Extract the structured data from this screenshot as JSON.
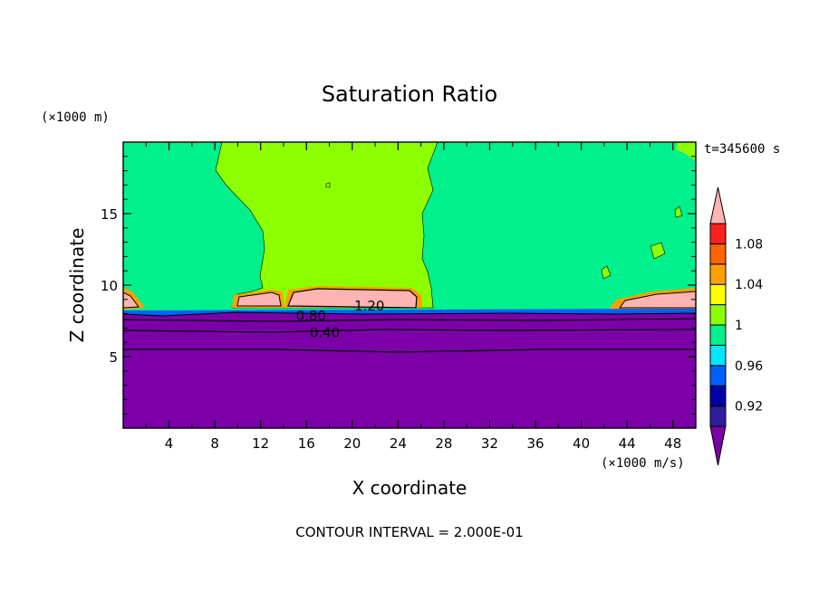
{
  "chart_data": {
    "type": "heatmap",
    "title": "Saturation Ratio",
    "xlabel": "X coordinate",
    "ylabel": "Z coordinate",
    "x_unit": "(×1000 m/s)",
    "y_unit": "(×1000 m)",
    "time_label": "t=345600 s",
    "footer": "CONTOUR INTERVAL = 2.000E-01",
    "xlim": [
      0,
      50
    ],
    "ylim": [
      0,
      20
    ],
    "x_ticks": [
      4,
      8,
      12,
      16,
      20,
      24,
      28,
      32,
      36,
      40,
      44,
      48
    ],
    "y_ticks": [
      5,
      10,
      15
    ],
    "colorbar": {
      "levels": [
        0.9,
        0.92,
        0.94,
        0.96,
        0.98,
        1.0,
        1.02,
        1.04,
        1.06,
        1.08,
        1.1
      ],
      "tick_labels": [
        "0.92",
        "0.96",
        "1",
        "1.04",
        "1.08"
      ],
      "tick_values": [
        0.92,
        0.96,
        1.0,
        1.04,
        1.08
      ],
      "colors": [
        "#2f1d9e",
        "#0000a8",
        "#0060ff",
        "#00e6ff",
        "#00f08c",
        "#8cff00",
        "#ffff00",
        "#ffa000",
        "#ff6400",
        "#ff2020"
      ],
      "under_color": "#7b00a8",
      "over_color": "#ffb4b4"
    },
    "contours": [
      {
        "label": "0.40",
        "value": 0.4,
        "label_x": 17.6,
        "z": 6.75
      },
      {
        "label": "0.80",
        "value": 0.8,
        "label_x": 16.4,
        "z": 7.9
      },
      {
        "label": "1.20",
        "value": 1.2,
        "label_x": 21.5,
        "z": 8.6
      }
    ],
    "regions": [
      {
        "name": "lower-subsaturated",
        "value_class": "below 0.9",
        "color": "#7b00a8",
        "z_range": [
          0,
          8.2
        ]
      },
      {
        "name": "upper-background",
        "value_class": "0.98-1.00",
        "color": "#00f08c",
        "z_range": [
          8.2,
          20
        ]
      },
      {
        "name": "central-plume",
        "value_class": "1.00-1.02",
        "color": "#8cff00",
        "x_range": [
          8,
          27
        ]
      },
      {
        "name": "supersaturated-band",
        "value_class": "above 1.1",
        "color": "#ffb4b4",
        "x_range": [
          14,
          26
        ]
      }
    ]
  }
}
